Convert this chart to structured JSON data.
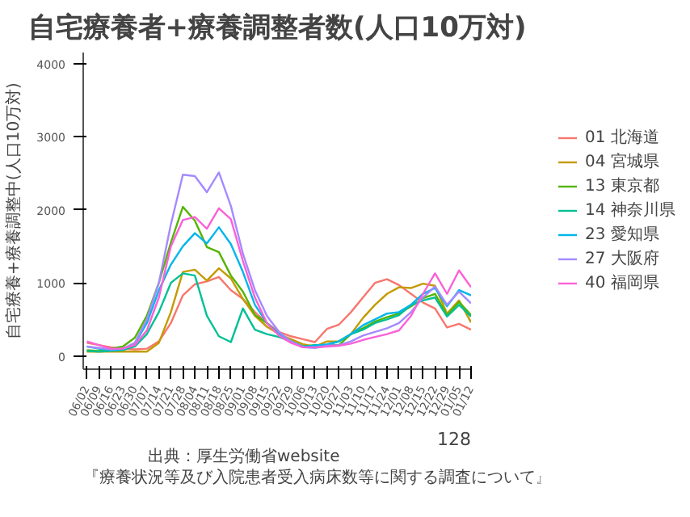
{
  "chart_data": {
    "type": "line",
    "title": "自宅療養者+療養調整者数(人口10万対)",
    "ylabel": "自宅療養+療養調整中(人口10万対)",
    "categories": [
      "06/02",
      "06/09",
      "06/16",
      "06/23",
      "06/30",
      "07/07",
      "07/14",
      "07/21",
      "07/28",
      "08/04",
      "08/11",
      "08/18",
      "08/25",
      "09/01",
      "09/08",
      "09/15",
      "09/22",
      "09/29",
      "10/06",
      "10/13",
      "10/20",
      "10/27",
      "11/03",
      "11/10",
      "11/17",
      "11/24",
      "12/01",
      "12/08",
      "12/15",
      "12/22",
      "12/29",
      "01/05",
      "01/12"
    ],
    "series": [
      {
        "name": "01 北海道",
        "color": "#f8766d",
        "values": [
          180,
          150,
          120,
          100,
          90,
          100,
          200,
          450,
          830,
          980,
          1020,
          1080,
          900,
          780,
          600,
          450,
          330,
          270,
          230,
          190,
          370,
          430,
          600,
          800,
          1000,
          1050,
          970,
          850,
          730,
          650,
          390,
          440,
          360
        ]
      },
      {
        "name": "04 宮城県",
        "color": "#c49a00",
        "values": [
          60,
          60,
          60,
          60,
          60,
          60,
          180,
          600,
          1150,
          1180,
          1030,
          1200,
          1060,
          780,
          550,
          400,
          300,
          230,
          160,
          130,
          200,
          200,
          300,
          520,
          700,
          850,
          940,
          930,
          990,
          960,
          580,
          760,
          460
        ]
      },
      {
        "name": "13 東京都",
        "color": "#53b400",
        "values": [
          80,
          70,
          100,
          130,
          250,
          550,
          1000,
          1550,
          2040,
          1850,
          1490,
          1420,
          1100,
          880,
          560,
          450,
          300,
          200,
          130,
          150,
          150,
          150,
          300,
          380,
          470,
          530,
          580,
          680,
          790,
          850,
          560,
          740,
          560
        ]
      },
      {
        "name": "14 神奈川県",
        "color": "#00c094",
        "values": [
          70,
          60,
          70,
          80,
          130,
          300,
          600,
          1000,
          1130,
          1100,
          550,
          270,
          190,
          650,
          360,
          300,
          260,
          200,
          120,
          150,
          150,
          200,
          300,
          360,
          450,
          500,
          560,
          700,
          760,
          800,
          540,
          700,
          540
        ]
      },
      {
        "name": "23 愛知県",
        "color": "#00b6eb",
        "values": [
          130,
          100,
          80,
          90,
          170,
          450,
          900,
          1250,
          1500,
          1680,
          1540,
          1760,
          1530,
          1150,
          700,
          450,
          300,
          200,
          130,
          140,
          160,
          200,
          300,
          420,
          500,
          580,
          600,
          700,
          850,
          930,
          680,
          900,
          830
        ]
      },
      {
        "name": "27 大阪府",
        "color": "#a58aff",
        "values": [
          130,
          110,
          90,
          100,
          180,
          500,
          1000,
          1800,
          2480,
          2460,
          2240,
          2510,
          2050,
          1400,
          900,
          550,
          330,
          200,
          120,
          110,
          140,
          150,
          200,
          280,
          330,
          380,
          450,
          600,
          800,
          950,
          700,
          880,
          720
        ]
      },
      {
        "name": "40 福岡県",
        "color": "#fb61d7",
        "values": [
          200,
          150,
          100,
          100,
          150,
          350,
          800,
          1500,
          1860,
          1900,
          1740,
          2020,
          1870,
          1300,
          800,
          450,
          280,
          180,
          120,
          120,
          130,
          140,
          170,
          220,
          260,
          300,
          350,
          550,
          850,
          1130,
          850,
          1170,
          940
        ]
      }
    ],
    "ylim": [
      -180,
      4150
    ],
    "yticks": [
      0,
      1000,
      2000,
      3000,
      4000
    ],
    "grid": false,
    "legend": "right",
    "annotations": [
      "出典：厚生労働省website",
      "『療養状況等及び入院患者受入病床数等に関する調査について』",
      "128"
    ]
  }
}
